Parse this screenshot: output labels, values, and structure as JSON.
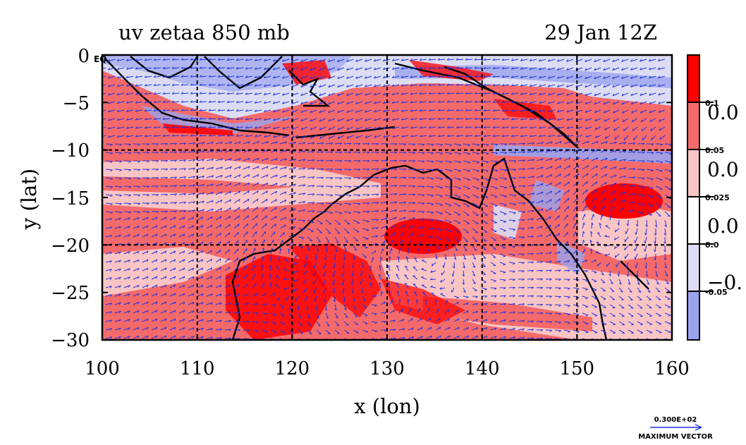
{
  "title_left": "uv zetaa 850 mb",
  "title_right": "29 Jan 12Z",
  "xlabel": "x (lon)",
  "ylabel": "y (lat)",
  "eq_label": "EQ",
  "x_ticks": [
    "100",
    "110",
    "120",
    "130",
    "140",
    "150",
    "160"
  ],
  "y_ticks": [
    "0",
    "−5",
    "−10",
    "−15",
    "−20",
    "−25",
    "−30"
  ],
  "x_range": [
    100,
    160
  ],
  "y_range": [
    -30,
    0
  ],
  "colorbar": {
    "boundary_labels": [
      "0.1",
      "0.05",
      "0.025",
      "0.0",
      "-0.05"
    ],
    "big_labels": [
      "0.0",
      "0.0",
      "0.0",
      "−0."
    ],
    "colors": [
      "#ff0000",
      "#f46a6a",
      "#f8c4c4",
      "#ffffff",
      "#dcdcf4",
      "#9aa4ee"
    ]
  },
  "vector_legend": {
    "value": "0.300E+02",
    "label": "MAXIMUM VECTOR"
  },
  "colors": {
    "vector": "#2233dd",
    "coast": "#000000",
    "grid": "#000000"
  }
}
